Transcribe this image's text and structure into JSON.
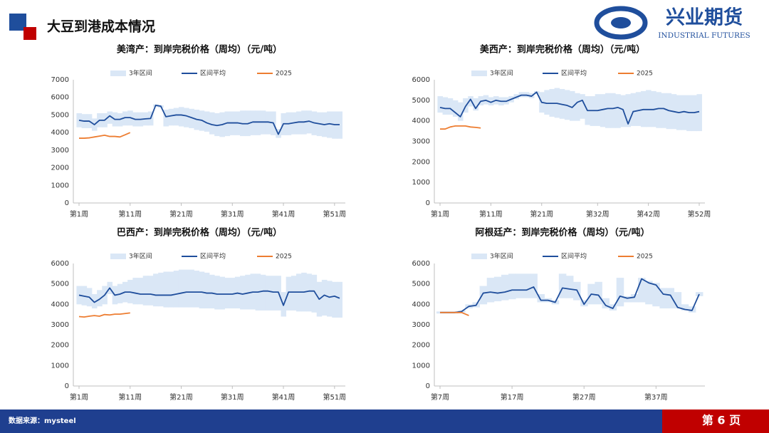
{
  "header": {
    "title": "大豆到港成本情况",
    "logo_cn": "兴业期货",
    "logo_en": "INDUSTRIAL FUTURES"
  },
  "footer": {
    "source": "数据来源：mysteel",
    "page": "第 6 页"
  },
  "chart_data": [
    {
      "type": "line",
      "title": "美湾产：到岸完税价格（周均）（元/吨）",
      "categories": [
        "第1周",
        null,
        null,
        null,
        null,
        null,
        null,
        null,
        null,
        null,
        "第11周",
        null,
        null,
        null,
        null,
        null,
        null,
        null,
        null,
        null,
        "第21周",
        null,
        null,
        null,
        null,
        null,
        null,
        null,
        null,
        null,
        "第31周",
        null,
        null,
        null,
        null,
        null,
        null,
        null,
        null,
        null,
        "第41周",
        null,
        null,
        null,
        null,
        null,
        null,
        null,
        null,
        null,
        "第51周",
        null
      ],
      "ylim": [
        0,
        7000
      ],
      "yticks": [
        0,
        1000,
        2000,
        3000,
        4000,
        5000,
        6000,
        7000
      ],
      "series": [
        {
          "name": "3年区间",
          "color": "#dae7f6",
          "low": [
            4300,
            4250,
            4250,
            4100,
            4300,
            4300,
            4500,
            4350,
            4350,
            4400,
            4400,
            4350,
            4350,
            4400,
            4400,
            5450,
            5400,
            4350,
            4400,
            4400,
            4350,
            4300,
            4250,
            4150,
            4100,
            4050,
            3900,
            3800,
            3750,
            3800,
            3850,
            3850,
            3800,
            3800,
            3850,
            3850,
            3900,
            3900,
            3850,
            3700,
            3850,
            3850,
            3900,
            3900,
            3900,
            3950,
            3850,
            3800,
            3750,
            3700,
            3650,
            3650
          ],
          "high": [
            5100,
            5050,
            5050,
            4800,
            5100,
            5100,
            5200,
            5150,
            5100,
            5200,
            5250,
            5150,
            5150,
            5150,
            5200,
            5600,
            5550,
            5300,
            5350,
            5400,
            5450,
            5400,
            5350,
            5300,
            5250,
            5200,
            5150,
            5100,
            5150,
            5200,
            5200,
            5200,
            5250,
            5250,
            5250,
            5250,
            5250,
            5200,
            5200,
            4200,
            5100,
            5150,
            5150,
            5200,
            5250,
            5250,
            5200,
            5150,
            5150,
            5200,
            5200,
            5200
          ]
        },
        {
          "name": "区间平均",
          "color": "#1f4e9c",
          "values": [
            4700,
            4650,
            4650,
            4450,
            4700,
            4700,
            4950,
            4750,
            4750,
            4850,
            4850,
            4750,
            4750,
            4780,
            4800,
            5550,
            5500,
            4900,
            4950,
            5000,
            5000,
            4950,
            4850,
            4750,
            4700,
            4550,
            4450,
            4400,
            4450,
            4550,
            4550,
            4550,
            4500,
            4500,
            4600,
            4600,
            4600,
            4600,
            4550,
            3900,
            4500,
            4500,
            4550,
            4600,
            4600,
            4650,
            4550,
            4500,
            4450,
            4500,
            4450,
            4450
          ]
        },
        {
          "name": "2025",
          "color": "#ed7d31",
          "values": [
            3680,
            3680,
            3700,
            3750,
            3800,
            3850,
            3780,
            3780,
            3750,
            3870,
            4000,
            null,
            null,
            null,
            null,
            null,
            null,
            null,
            null,
            null,
            null,
            null,
            null,
            null,
            null,
            null,
            null,
            null,
            null,
            null,
            null,
            null,
            null,
            null,
            null,
            null,
            null,
            null,
            null,
            null,
            null,
            null,
            null,
            null,
            null,
            null,
            null,
            null,
            null,
            null,
            null,
            null
          ]
        }
      ]
    },
    {
      "type": "line",
      "title": "美西产：到岸完税价格（周均）（元/吨）",
      "categories": [
        "第1周",
        null,
        null,
        null,
        null,
        null,
        null,
        null,
        null,
        null,
        "第11周",
        null,
        null,
        null,
        null,
        null,
        null,
        null,
        null,
        null,
        "第21周",
        null,
        null,
        null,
        null,
        null,
        null,
        null,
        null,
        null,
        null,
        "第32周",
        null,
        null,
        null,
        null,
        null,
        null,
        null,
        null,
        null,
        "第42周",
        null,
        null,
        null,
        null,
        null,
        null,
        null,
        null,
        null,
        "第52周"
      ],
      "ylim": [
        0,
        6000
      ],
      "yticks": [
        0,
        1000,
        2000,
        3000,
        4000,
        5000,
        6000
      ],
      "series": [
        {
          "name": "3年区间",
          "color": "#dae7f6",
          "low": [
            4400,
            4300,
            4300,
            4200,
            4000,
            4400,
            4700,
            4500,
            4750,
            4800,
            4750,
            4800,
            4750,
            4800,
            4900,
            5050,
            5150,
            5150,
            5100,
            5300,
            4400,
            4300,
            4200,
            4150,
            4100,
            4050,
            4000,
            4000,
            4100,
            3800,
            3750,
            3750,
            3700,
            3650,
            3650,
            3650,
            3700,
            3700,
            3750,
            3750,
            3700,
            3700,
            3700,
            3650,
            3650,
            3600,
            3600,
            3550,
            3550,
            3500,
            3500,
            3500
          ],
          "high": [
            5200,
            5150,
            5100,
            5000,
            4900,
            5100,
            5200,
            5100,
            5200,
            5250,
            5150,
            5200,
            5150,
            5150,
            5200,
            5300,
            5400,
            5400,
            5350,
            5450,
            5400,
            5500,
            5550,
            5600,
            5550,
            5500,
            5450,
            5350,
            5300,
            5200,
            5200,
            5300,
            5300,
            5350,
            5350,
            5300,
            5250,
            5300,
            5350,
            5400,
            5450,
            5500,
            5450,
            5400,
            5350,
            5350,
            5300,
            5250,
            5250,
            5250,
            5250,
            5300
          ]
        },
        {
          "name": "区间平均",
          "color": "#1f4e9c",
          "values": [
            4650,
            4600,
            4600,
            4400,
            4200,
            4700,
            5050,
            4600,
            4950,
            5000,
            4900,
            5000,
            4950,
            4950,
            5050,
            5150,
            5250,
            5250,
            5200,
            5400,
            4900,
            4850,
            4850,
            4850,
            4800,
            4750,
            4650,
            4900,
            5000,
            4500,
            4500,
            4500,
            4550,
            4600,
            4600,
            4650,
            4550,
            3850,
            4450,
            4500,
            4550,
            4550,
            4550,
            4600,
            4600,
            4500,
            4450,
            4400,
            4450,
            4400,
            4400,
            4450
          ]
        },
        {
          "name": "2025",
          "color": "#ed7d31",
          "values": [
            3600,
            3600,
            3700,
            3750,
            3750,
            3750,
            3700,
            3680,
            3650,
            null,
            null,
            null,
            null,
            null,
            null,
            null,
            null,
            null,
            null,
            null,
            null,
            null,
            null,
            null,
            null,
            null,
            null,
            null,
            null,
            null,
            null,
            null,
            null,
            null,
            null,
            null,
            null,
            null,
            null,
            null,
            null,
            null,
            null,
            null,
            null,
            null,
            null,
            null,
            null,
            null,
            null,
            null
          ]
        }
      ]
    },
    {
      "type": "line",
      "title": "巴西产：到岸完税价格（周均）（元/吨）",
      "categories": [
        "第1周",
        null,
        null,
        null,
        null,
        null,
        null,
        null,
        null,
        null,
        "第11周",
        null,
        null,
        null,
        null,
        null,
        null,
        null,
        null,
        null,
        "第21周",
        null,
        null,
        null,
        null,
        null,
        null,
        null,
        null,
        null,
        "第31周",
        null,
        null,
        null,
        null,
        null,
        null,
        null,
        null,
        null,
        "第41周",
        null,
        null,
        null,
        null,
        null,
        null,
        null,
        null,
        null,
        "第51周",
        null
      ],
      "ylim": [
        0,
        6000
      ],
      "yticks": [
        0,
        1000,
        2000,
        3000,
        4000,
        5000,
        6000
      ],
      "series": [
        {
          "name": "3年区间",
          "color": "#dae7f6",
          "low": [
            4000,
            3950,
            3900,
            3800,
            3900,
            4000,
            4500,
            4000,
            4050,
            4100,
            4050,
            4000,
            4000,
            3950,
            3950,
            3900,
            3900,
            3850,
            3850,
            3850,
            3850,
            3850,
            3850,
            3850,
            3800,
            3800,
            3800,
            3750,
            3750,
            3800,
            3800,
            3800,
            3750,
            3750,
            3750,
            3700,
            3700,
            3700,
            3700,
            3700,
            3400,
            3700,
            3700,
            3650,
            3650,
            3650,
            3600,
            3400,
            3450,
            3400,
            3350,
            3350
          ],
          "high": [
            4900,
            4900,
            4800,
            4500,
            4700,
            4900,
            5100,
            4900,
            5000,
            5100,
            5200,
            5300,
            5300,
            5400,
            5400,
            5500,
            5550,
            5600,
            5600,
            5650,
            5700,
            5700,
            5700,
            5650,
            5600,
            5550,
            5450,
            5400,
            5350,
            5300,
            5300,
            5350,
            5400,
            5450,
            5500,
            5500,
            5450,
            5400,
            5400,
            5400,
            4600,
            5350,
            5400,
            5500,
            5550,
            5500,
            5450,
            5100,
            5200,
            5150,
            5100,
            5100
          ]
        },
        {
          "name": "区间平均",
          "color": "#1f4e9c",
          "values": [
            4450,
            4400,
            4350,
            4100,
            4250,
            4450,
            4800,
            4450,
            4500,
            4600,
            4600,
            4550,
            4500,
            4500,
            4500,
            4450,
            4450,
            4450,
            4450,
            4500,
            4550,
            4600,
            4600,
            4600,
            4600,
            4550,
            4550,
            4500,
            4500,
            4500,
            4500,
            4550,
            4500,
            4550,
            4600,
            4600,
            4650,
            4650,
            4600,
            4600,
            3950,
            4600,
            4600,
            4600,
            4600,
            4650,
            4650,
            4250,
            4450,
            4350,
            4400,
            4300
          ]
        },
        {
          "name": "2025",
          "color": "#ed7d31",
          "values": [
            3400,
            3380,
            3420,
            3450,
            3420,
            3500,
            3480,
            3520,
            3520,
            3550,
            3580,
            null,
            null,
            null,
            null,
            null,
            null,
            null,
            null,
            null,
            null,
            null,
            null,
            null,
            null,
            null,
            null,
            null,
            null,
            null,
            null,
            null,
            null,
            null,
            null,
            null,
            null,
            null,
            null,
            null,
            null,
            null,
            null,
            null,
            null,
            null,
            null,
            null,
            null,
            null,
            null,
            null
          ]
        }
      ]
    },
    {
      "type": "line",
      "title": "阿根廷产：到岸完税价格（周均）（元/吨）",
      "categories": [
        "第7周",
        null,
        null,
        null,
        null,
        null,
        null,
        null,
        null,
        null,
        "第17周",
        null,
        null,
        null,
        null,
        null,
        null,
        null,
        null,
        null,
        "第27周",
        null,
        null,
        null,
        null,
        null,
        null,
        null,
        null,
        null,
        "第37周",
        null,
        null,
        null,
        null,
        null,
        null
      ],
      "ylim": [
        0,
        6000
      ],
      "yticks": [
        0,
        1000,
        2000,
        3000,
        4000,
        5000,
        6000
      ],
      "series": [
        {
          "name": "3年区间",
          "color": "#dae7f6",
          "low": [
            3550,
            3550,
            3550,
            3600,
            3800,
            3850,
            4000,
            4100,
            4150,
            4200,
            4250,
            4300,
            4300,
            4300,
            4100,
            4100,
            4000,
            4300,
            4300,
            4200,
            3900,
            4000,
            4000,
            3800,
            3700,
            3900,
            4100,
            4100,
            4100,
            4000,
            3900,
            3800,
            3800,
            3800,
            3700,
            3600,
            4400
          ],
          "high": [
            3650,
            3650,
            3650,
            3700,
            4000,
            4100,
            4900,
            5300,
            5350,
            5450,
            5500,
            5500,
            5500,
            5500,
            4500,
            4300,
            4200,
            5500,
            5400,
            5100,
            4200,
            5000,
            5100,
            4300,
            4000,
            5300,
            4400,
            4500,
            5300,
            5150,
            5050,
            4800,
            4800,
            4600,
            4000,
            3900,
            4600
          ]
        },
        {
          "name": "区间平均",
          "color": "#1f4e9c",
          "values": [
            3600,
            3600,
            3600,
            3650,
            3900,
            3950,
            4550,
            4600,
            4550,
            4600,
            4700,
            4700,
            4700,
            4850,
            4200,
            4200,
            4100,
            4800,
            4750,
            4700,
            4000,
            4500,
            4450,
            3950,
            3800,
            4400,
            4300,
            4350,
            5250,
            5050,
            4950,
            4500,
            4450,
            3850,
            3750,
            3700,
            4500
          ]
        },
        {
          "name": "2025",
          "color": "#ed7d31",
          "values": [
            3600,
            3600,
            3600,
            3600,
            3450,
            null,
            null,
            null,
            null,
            null,
            null,
            null,
            null,
            null,
            null,
            null,
            null,
            null,
            null,
            null,
            null,
            null,
            null,
            null,
            null,
            null,
            null,
            null,
            null,
            null,
            null,
            null,
            null,
            null,
            null,
            null,
            null
          ]
        }
      ]
    }
  ]
}
